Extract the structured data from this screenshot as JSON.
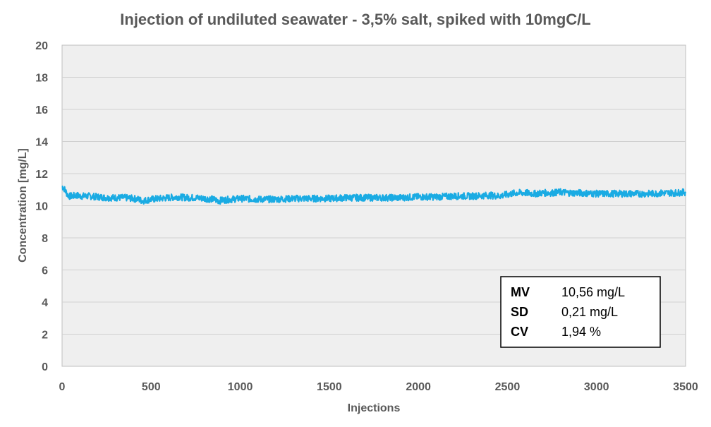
{
  "chart_data": {
    "type": "line",
    "title": "Injection of undiluted seawater - 3,5% salt, spiked with 10mgC/L",
    "xlabel": "Injections",
    "ylabel": "Concentration [mg/L]",
    "xlim": [
      0,
      3500
    ],
    "ylim": [
      0,
      20
    ],
    "x_ticks": [
      "0",
      "500",
      "1000",
      "1500",
      "2000",
      "2500",
      "3000",
      "3500"
    ],
    "y_ticks": [
      "0",
      "2",
      "4",
      "6",
      "8",
      "10",
      "12",
      "14",
      "16",
      "18",
      "20"
    ],
    "grid": true,
    "series": [
      {
        "color": "#1aabe3",
        "x": [
          0,
          10,
          20,
          30,
          40,
          60,
          80,
          100,
          150,
          200,
          250,
          300,
          350,
          400,
          430,
          450,
          500,
          550,
          600,
          650,
          700,
          750,
          800,
          850,
          880,
          900,
          950,
          1000,
          1100,
          1200,
          1300,
          1400,
          1500,
          1600,
          1700,
          1800,
          1900,
          2000,
          2100,
          2200,
          2300,
          2400,
          2450,
          2500,
          2550,
          2600,
          2650,
          2700,
          2750,
          2800,
          2850,
          2900,
          3000,
          3100,
          3200,
          3300,
          3400,
          3450,
          3500
        ],
        "y": [
          11.2,
          11.1,
          10.9,
          10.7,
          10.6,
          10.6,
          10.65,
          10.6,
          10.6,
          10.55,
          10.5,
          10.5,
          10.5,
          10.45,
          10.4,
          10.3,
          10.4,
          10.45,
          10.5,
          10.55,
          10.5,
          10.5,
          10.45,
          10.4,
          10.3,
          10.35,
          10.4,
          10.45,
          10.4,
          10.4,
          10.45,
          10.45,
          10.45,
          10.5,
          10.5,
          10.5,
          10.5,
          10.55,
          10.55,
          10.6,
          10.6,
          10.65,
          10.6,
          10.7,
          10.8,
          10.8,
          10.75,
          10.8,
          10.8,
          10.85,
          10.8,
          10.8,
          10.75,
          10.75,
          10.75,
          10.75,
          10.8,
          10.8,
          10.85
        ]
      }
    ]
  },
  "stats": [
    {
      "name": "MV",
      "value": "10,56 mg/L"
    },
    {
      "name": "SD",
      "value": "0,21 mg/L"
    },
    {
      "name": "CV",
      "value": "1,94 %"
    }
  ]
}
